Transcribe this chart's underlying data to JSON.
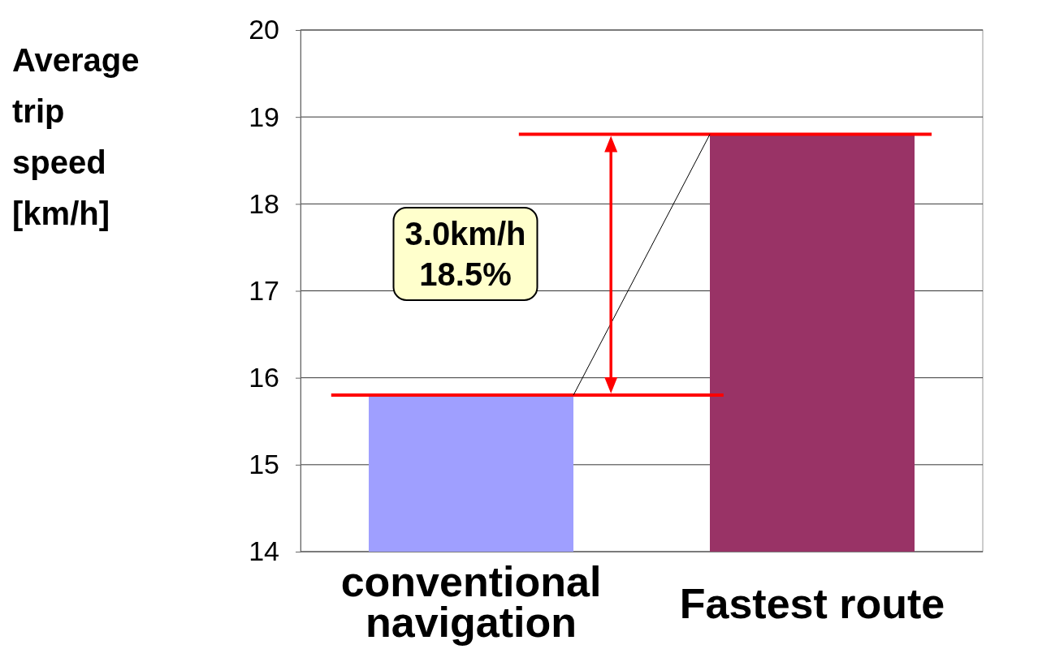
{
  "chart_data": {
    "type": "bar",
    "ylabel": "Average trip speed [km/h]",
    "categories": [
      "conventional navigation",
      "Fastest route"
    ],
    "values": [
      15.8,
      18.8
    ],
    "colors": [
      "#9f9fff",
      "#993366"
    ],
    "ylim": [
      14,
      20
    ],
    "yticks": [
      14,
      15,
      16,
      17,
      18,
      19,
      20
    ],
    "grid": "y",
    "ref_lines": [
      {
        "axis": "y",
        "value": 15.8,
        "color": "#ff0000"
      },
      {
        "axis": "y",
        "value": 18.8,
        "color": "#ff0000"
      }
    ],
    "annotations": [
      "3.0km/h\n18.5%"
    ]
  }
}
